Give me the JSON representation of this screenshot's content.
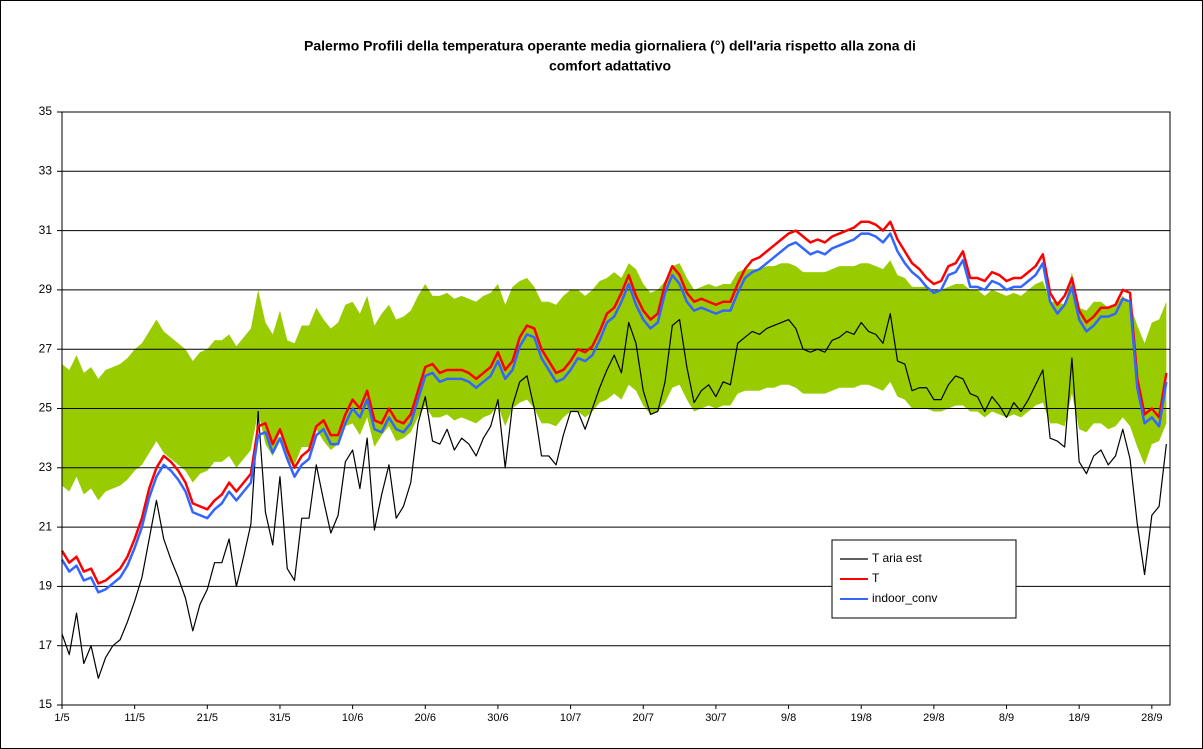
{
  "chart_data": {
    "type": "line",
    "title": [
      "Palermo Profili della temperatura operante media giornaliera (°) dell'aria rispetto alla zona di",
      "comfort adattativo"
    ],
    "categories": [
      "1/5",
      null,
      null,
      null,
      null,
      null,
      null,
      null,
      null,
      null,
      "11/5",
      null,
      null,
      null,
      null,
      null,
      null,
      null,
      null,
      null,
      "21/5",
      null,
      null,
      null,
      null,
      null,
      null,
      null,
      null,
      null,
      "31/5",
      null,
      null,
      null,
      null,
      null,
      null,
      null,
      null,
      null,
      "10/6",
      null,
      null,
      null,
      null,
      null,
      null,
      null,
      null,
      null,
      "20/6",
      null,
      null,
      null,
      null,
      null,
      null,
      null,
      null,
      null,
      "30/6",
      null,
      null,
      null,
      null,
      null,
      null,
      null,
      null,
      null,
      "10/7",
      null,
      null,
      null,
      null,
      null,
      null,
      null,
      null,
      null,
      "20/7",
      null,
      null,
      null,
      null,
      null,
      null,
      null,
      null,
      null,
      "30/7",
      null,
      null,
      null,
      null,
      null,
      null,
      null,
      null,
      null,
      "9/8",
      null,
      null,
      null,
      null,
      null,
      null,
      null,
      null,
      null,
      "19/8",
      null,
      null,
      null,
      null,
      null,
      null,
      null,
      null,
      null,
      "29/8",
      null,
      null,
      null,
      null,
      null,
      null,
      null,
      null,
      null,
      "8/9",
      null,
      null,
      null,
      null,
      null,
      null,
      null,
      null,
      null,
      "18/9",
      null,
      null,
      null,
      null,
      null,
      null,
      null,
      null,
      null,
      "28/9",
      null,
      null
    ],
    "ylim": [
      15,
      35
    ],
    "yticks": [
      15,
      17,
      19,
      21,
      23,
      25,
      27,
      29,
      31,
      33,
      35
    ],
    "grid": true,
    "legend": "lower right",
    "band": {
      "color": "#99cc00",
      "upper": [
        26.5,
        26.3,
        26.8,
        26.2,
        26.4,
        26.0,
        26.3,
        26.4,
        26.5,
        26.7,
        27.0,
        27.2,
        27.6,
        28.0,
        27.6,
        27.4,
        27.2,
        27.0,
        26.6,
        26.9,
        27.0,
        27.3,
        27.3,
        27.5,
        27.1,
        27.4,
        27.7,
        29.0,
        27.9,
        27.5,
        28.3,
        27.3,
        27.2,
        27.8,
        27.8,
        28.4,
        28.0,
        27.7,
        27.9,
        28.5,
        28.6,
        28.2,
        28.8,
        27.8,
        28.2,
        28.5,
        28.0,
        28.1,
        28.3,
        28.8,
        29.2,
        28.8,
        28.8,
        28.9,
        28.7,
        28.8,
        28.7,
        28.6,
        28.8,
        28.9,
        29.2,
        28.5,
        29.1,
        29.3,
        29.4,
        29.1,
        28.6,
        28.6,
        28.5,
        28.8,
        29.0,
        29.0,
        28.8,
        29.0,
        29.3,
        29.4,
        29.6,
        29.4,
        29.9,
        29.7,
        29.2,
        28.9,
        29.0,
        29.3,
        29.8,
        29.9,
        29.4,
        29.0,
        29.1,
        29.2,
        29.1,
        29.2,
        29.2,
        29.6,
        29.7,
        29.7,
        29.7,
        29.8,
        29.8,
        29.9,
        29.9,
        29.8,
        29.6,
        29.6,
        29.6,
        29.6,
        29.7,
        29.8,
        29.8,
        29.8,
        29.9,
        29.9,
        29.8,
        29.7,
        30.0,
        29.5,
        29.4,
        29.1,
        29.1,
        29.1,
        29.0,
        29.0,
        29.1,
        29.2,
        29.2,
        29.0,
        29.0,
        28.8,
        29.0,
        28.9,
        28.8,
        28.9,
        28.8,
        29.0,
        29.2,
        29.3,
        28.6,
        28.6,
        28.5,
        29.6,
        28.4,
        28.3,
        28.6,
        28.6,
        28.4,
        28.5,
        28.8,
        28.5,
        27.8,
        27.2,
        27.9,
        28.0,
        28.6
      ],
      "lower": [
        22.4,
        22.2,
        22.7,
        22.1,
        22.3,
        21.9,
        22.2,
        22.3,
        22.4,
        22.6,
        22.9,
        23.1,
        23.5,
        23.9,
        23.5,
        23.3,
        23.1,
        22.9,
        22.5,
        22.8,
        22.9,
        23.2,
        23.2,
        23.4,
        23.0,
        23.3,
        23.6,
        24.9,
        23.8,
        23.4,
        24.2,
        23.2,
        23.1,
        23.7,
        23.7,
        24.3,
        23.9,
        23.6,
        23.8,
        24.4,
        24.5,
        24.1,
        24.7,
        23.7,
        24.1,
        24.4,
        23.9,
        24.0,
        24.2,
        24.7,
        25.1,
        24.7,
        24.7,
        24.8,
        24.6,
        24.7,
        24.6,
        24.5,
        24.7,
        24.8,
        25.1,
        24.4,
        25.0,
        25.2,
        25.3,
        25.0,
        24.5,
        24.5,
        24.4,
        24.7,
        24.9,
        24.9,
        24.7,
        24.9,
        25.2,
        25.3,
        25.5,
        25.3,
        25.8,
        25.6,
        25.1,
        24.8,
        24.9,
        25.2,
        25.7,
        25.8,
        25.3,
        24.9,
        25.0,
        25.1,
        25.0,
        25.1,
        25.1,
        25.5,
        25.6,
        25.6,
        25.6,
        25.7,
        25.7,
        25.8,
        25.8,
        25.7,
        25.5,
        25.5,
        25.5,
        25.5,
        25.6,
        25.7,
        25.7,
        25.7,
        25.8,
        25.8,
        25.7,
        25.6,
        25.9,
        25.4,
        25.3,
        25.0,
        25.0,
        25.0,
        24.9,
        24.9,
        25.0,
        25.1,
        25.1,
        24.9,
        24.9,
        24.7,
        24.9,
        24.8,
        24.7,
        24.8,
        24.7,
        24.9,
        25.1,
        25.2,
        24.5,
        24.5,
        24.4,
        25.5,
        24.3,
        24.2,
        24.5,
        24.5,
        24.3,
        24.4,
        24.7,
        24.4,
        23.7,
        23.1,
        23.8,
        23.9,
        24.5
      ]
    },
    "series": [
      {
        "name": "T aria est",
        "color": "#000000",
        "width": 1.2,
        "values": [
          17.4,
          16.7,
          18.1,
          16.4,
          17.0,
          15.9,
          16.6,
          17.0,
          17.2,
          17.8,
          18.5,
          19.3,
          20.6,
          21.9,
          20.6,
          19.9,
          19.3,
          18.6,
          17.5,
          18.4,
          18.9,
          19.8,
          19.8,
          20.6,
          19.0,
          20.0,
          21.1,
          24.9,
          21.5,
          20.4,
          22.7,
          19.6,
          19.2,
          21.3,
          21.3,
          23.1,
          21.9,
          20.8,
          21.4,
          23.2,
          23.6,
          22.3,
          24.0,
          20.9,
          22.1,
          23.1,
          21.3,
          21.7,
          22.5,
          24.5,
          25.4,
          23.9,
          23.8,
          24.3,
          23.6,
          24.0,
          23.8,
          23.4,
          24.0,
          24.4,
          25.3,
          23.0,
          25.1,
          25.9,
          26.1,
          25.0,
          23.4,
          23.4,
          23.1,
          24.1,
          24.9,
          24.9,
          24.3,
          25.0,
          25.7,
          26.3,
          26.8,
          26.2,
          27.9,
          27.2,
          25.6,
          24.8,
          24.9,
          25.9,
          27.8,
          28.0,
          26.4,
          25.2,
          25.6,
          25.8,
          25.4,
          25.9,
          25.8,
          27.2,
          27.4,
          27.6,
          27.5,
          27.7,
          27.8,
          27.9,
          28.0,
          27.7,
          27.0,
          26.9,
          27.0,
          26.9,
          27.3,
          27.4,
          27.6,
          27.5,
          27.9,
          27.6,
          27.5,
          27.2,
          28.2,
          26.6,
          26.5,
          25.6,
          25.7,
          25.7,
          25.3,
          25.3,
          25.8,
          26.1,
          26.0,
          25.5,
          25.4,
          24.9,
          25.4,
          25.1,
          24.7,
          25.2,
          24.9,
          25.3,
          25.8,
          26.3,
          24.0,
          23.9,
          23.7,
          26.7,
          23.2,
          22.8,
          23.4,
          23.6,
          23.1,
          23.4,
          24.3,
          23.3,
          21.1,
          19.4,
          21.4,
          21.7,
          23.8
        ]
      },
      {
        "name": "T",
        "color": "#ff0000",
        "width": 2.5,
        "values": [
          20.2,
          19.8,
          20.0,
          19.5,
          19.6,
          19.1,
          19.2,
          19.4,
          19.6,
          20.0,
          20.6,
          21.3,
          22.3,
          23.0,
          23.4,
          23.2,
          22.9,
          22.5,
          21.8,
          21.7,
          21.6,
          21.9,
          22.1,
          22.5,
          22.2,
          22.5,
          22.8,
          24.4,
          24.5,
          23.8,
          24.3,
          23.6,
          23.0,
          23.4,
          23.6,
          24.4,
          24.6,
          24.1,
          24.1,
          24.8,
          25.3,
          25.0,
          25.6,
          24.6,
          24.5,
          25.0,
          24.6,
          24.5,
          24.8,
          25.6,
          26.4,
          26.5,
          26.2,
          26.3,
          26.3,
          26.3,
          26.2,
          26.0,
          26.2,
          26.4,
          26.9,
          26.3,
          26.6,
          27.4,
          27.8,
          27.7,
          27.0,
          26.6,
          26.2,
          26.3,
          26.6,
          27.0,
          26.9,
          27.1,
          27.6,
          28.2,
          28.4,
          28.9,
          29.5,
          28.8,
          28.3,
          28.0,
          28.2,
          29.2,
          29.8,
          29.5,
          28.9,
          28.6,
          28.7,
          28.6,
          28.5,
          28.6,
          28.6,
          29.2,
          29.7,
          30.0,
          30.1,
          30.3,
          30.5,
          30.7,
          30.9,
          31.0,
          30.8,
          30.6,
          30.7,
          30.6,
          30.8,
          30.9,
          31.0,
          31.1,
          31.3,
          31.3,
          31.2,
          31.0,
          31.3,
          30.7,
          30.3,
          29.9,
          29.7,
          29.4,
          29.2,
          29.3,
          29.8,
          29.9,
          30.3,
          29.4,
          29.4,
          29.3,
          29.6,
          29.5,
          29.3,
          29.4,
          29.4,
          29.6,
          29.8,
          30.2,
          28.9,
          28.5,
          28.8,
          29.4,
          28.3,
          27.9,
          28.1,
          28.4,
          28.4,
          28.5,
          29.0,
          28.9,
          26.0,
          24.8,
          25.0,
          24.7,
          26.2
        ]
      },
      {
        "name": "indoor_conv",
        "color": "#3366ff",
        "width": 2.5,
        "values": [
          19.9,
          19.5,
          19.7,
          19.2,
          19.3,
          18.8,
          18.9,
          19.1,
          19.3,
          19.7,
          20.3,
          21.0,
          22.0,
          22.7,
          23.1,
          22.9,
          22.6,
          22.2,
          21.5,
          21.4,
          21.3,
          21.6,
          21.8,
          22.2,
          21.9,
          22.2,
          22.5,
          24.1,
          24.2,
          23.5,
          24.0,
          23.3,
          22.7,
          23.1,
          23.3,
          24.1,
          24.3,
          23.8,
          23.8,
          24.5,
          25.0,
          24.7,
          25.3,
          24.3,
          24.2,
          24.7,
          24.3,
          24.2,
          24.5,
          25.3,
          26.1,
          26.2,
          25.9,
          26.0,
          26.0,
          26.0,
          25.9,
          25.7,
          25.9,
          26.1,
          26.6,
          26.0,
          26.3,
          27.1,
          27.5,
          27.4,
          26.7,
          26.3,
          25.9,
          26.0,
          26.3,
          26.7,
          26.6,
          26.8,
          27.3,
          27.9,
          28.1,
          28.6,
          29.2,
          28.5,
          28.0,
          27.7,
          27.9,
          28.9,
          29.5,
          29.2,
          28.6,
          28.3,
          28.4,
          28.3,
          28.2,
          28.3,
          28.3,
          28.9,
          29.4,
          29.6,
          29.7,
          29.9,
          30.1,
          30.3,
          30.5,
          30.6,
          30.4,
          30.2,
          30.3,
          30.2,
          30.4,
          30.5,
          30.6,
          30.7,
          30.9,
          30.9,
          30.8,
          30.6,
          30.9,
          30.3,
          29.9,
          29.6,
          29.4,
          29.1,
          28.9,
          29.0,
          29.5,
          29.6,
          30.0,
          29.1,
          29.1,
          29.0,
          29.3,
          29.2,
          29.0,
          29.1,
          29.1,
          29.3,
          29.5,
          29.9,
          28.6,
          28.2,
          28.5,
          29.1,
          28.0,
          27.6,
          27.8,
          28.1,
          28.1,
          28.2,
          28.7,
          28.6,
          25.7,
          24.5,
          24.7,
          24.4,
          25.9
        ]
      }
    ]
  }
}
